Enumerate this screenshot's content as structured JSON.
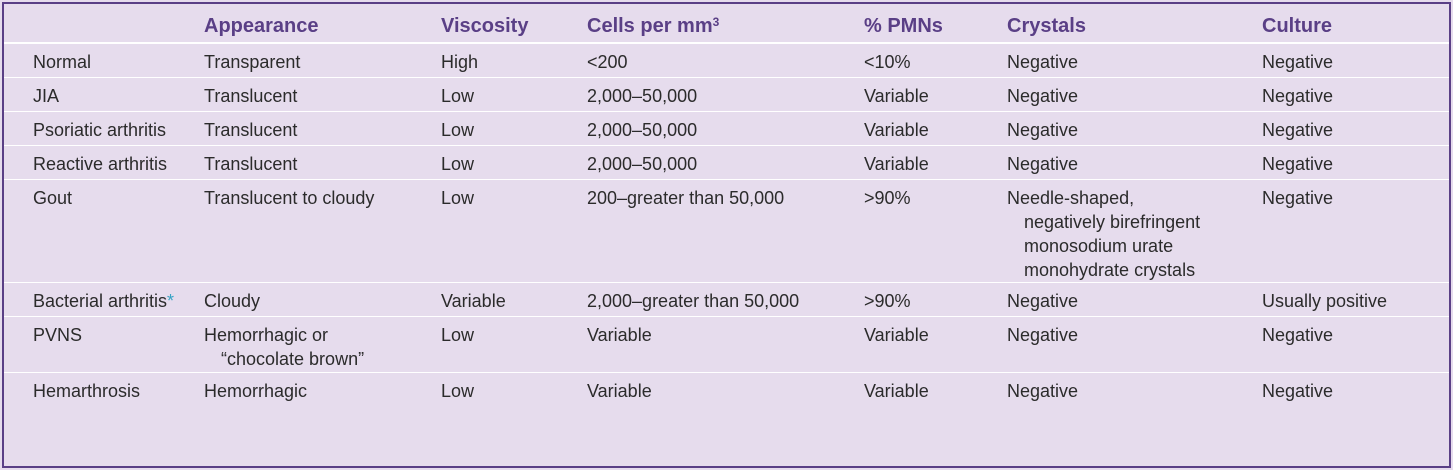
{
  "table": {
    "headers": {
      "condition": "",
      "appearance": "Appearance",
      "viscosity": "Viscosity",
      "cells": "Cells per mm",
      "cells_sup": "3",
      "pmns": "% PMNs",
      "crystals": "Crystals",
      "culture": "Culture"
    },
    "rows": [
      {
        "condition": "Normal",
        "appearance": [
          "Transparent"
        ],
        "viscosity": "High",
        "cells": "<200",
        "pmns": "<10%",
        "crystals": [
          "Negative"
        ],
        "culture": "Negative"
      },
      {
        "condition": "JIA",
        "appearance": [
          "Translucent"
        ],
        "viscosity": "Low",
        "cells": "2,000–50,000",
        "pmns": "Variable",
        "crystals": [
          "Negative"
        ],
        "culture": "Negative"
      },
      {
        "condition": "Psoriatic arthritis",
        "appearance": [
          "Translucent"
        ],
        "viscosity": "Low",
        "cells": "2,000–50,000",
        "pmns": "Variable",
        "crystals": [
          "Negative"
        ],
        "culture": "Negative"
      },
      {
        "condition": "Reactive arthritis",
        "appearance": [
          "Translucent"
        ],
        "viscosity": "Low",
        "cells": "2,000–50,000",
        "pmns": "Variable",
        "crystals": [
          "Negative"
        ],
        "culture": "Negative"
      },
      {
        "condition": "Gout",
        "appearance": [
          "Translucent to cloudy"
        ],
        "viscosity": "Low",
        "cells": "200–greater than 50,000",
        "pmns": ">90%",
        "crystals": [
          "Needle-shaped,",
          "negatively birefringent",
          "monosodium urate",
          "monohydrate crystals"
        ],
        "culture": "Negative"
      },
      {
        "condition": "Bacterial arthritis",
        "condition_mark": "*",
        "appearance": [
          "Cloudy"
        ],
        "viscosity": "Variable",
        "cells": "2,000–greater than 50,000",
        "pmns": ">90%",
        "crystals": [
          "Negative"
        ],
        "culture": "Usually positive"
      },
      {
        "condition": "PVNS",
        "appearance": [
          "Hemorrhagic or",
          "“chocolate brown”"
        ],
        "viscosity": "Low",
        "cells": "Variable",
        "pmns": "Variable",
        "crystals": [
          "Negative"
        ],
        "culture": "Negative"
      },
      {
        "condition": "Hemarthrosis",
        "appearance": [
          "Hemorrhagic"
        ],
        "viscosity": "Low",
        "cells": "Variable",
        "pmns": "Variable",
        "crystals": [
          "Negative"
        ],
        "culture": "Negative"
      }
    ]
  },
  "colors": {
    "background": "#e6dced",
    "header_text": "#5a3f86",
    "border": "#5a3f86",
    "asterisk": "#36a3c4"
  }
}
